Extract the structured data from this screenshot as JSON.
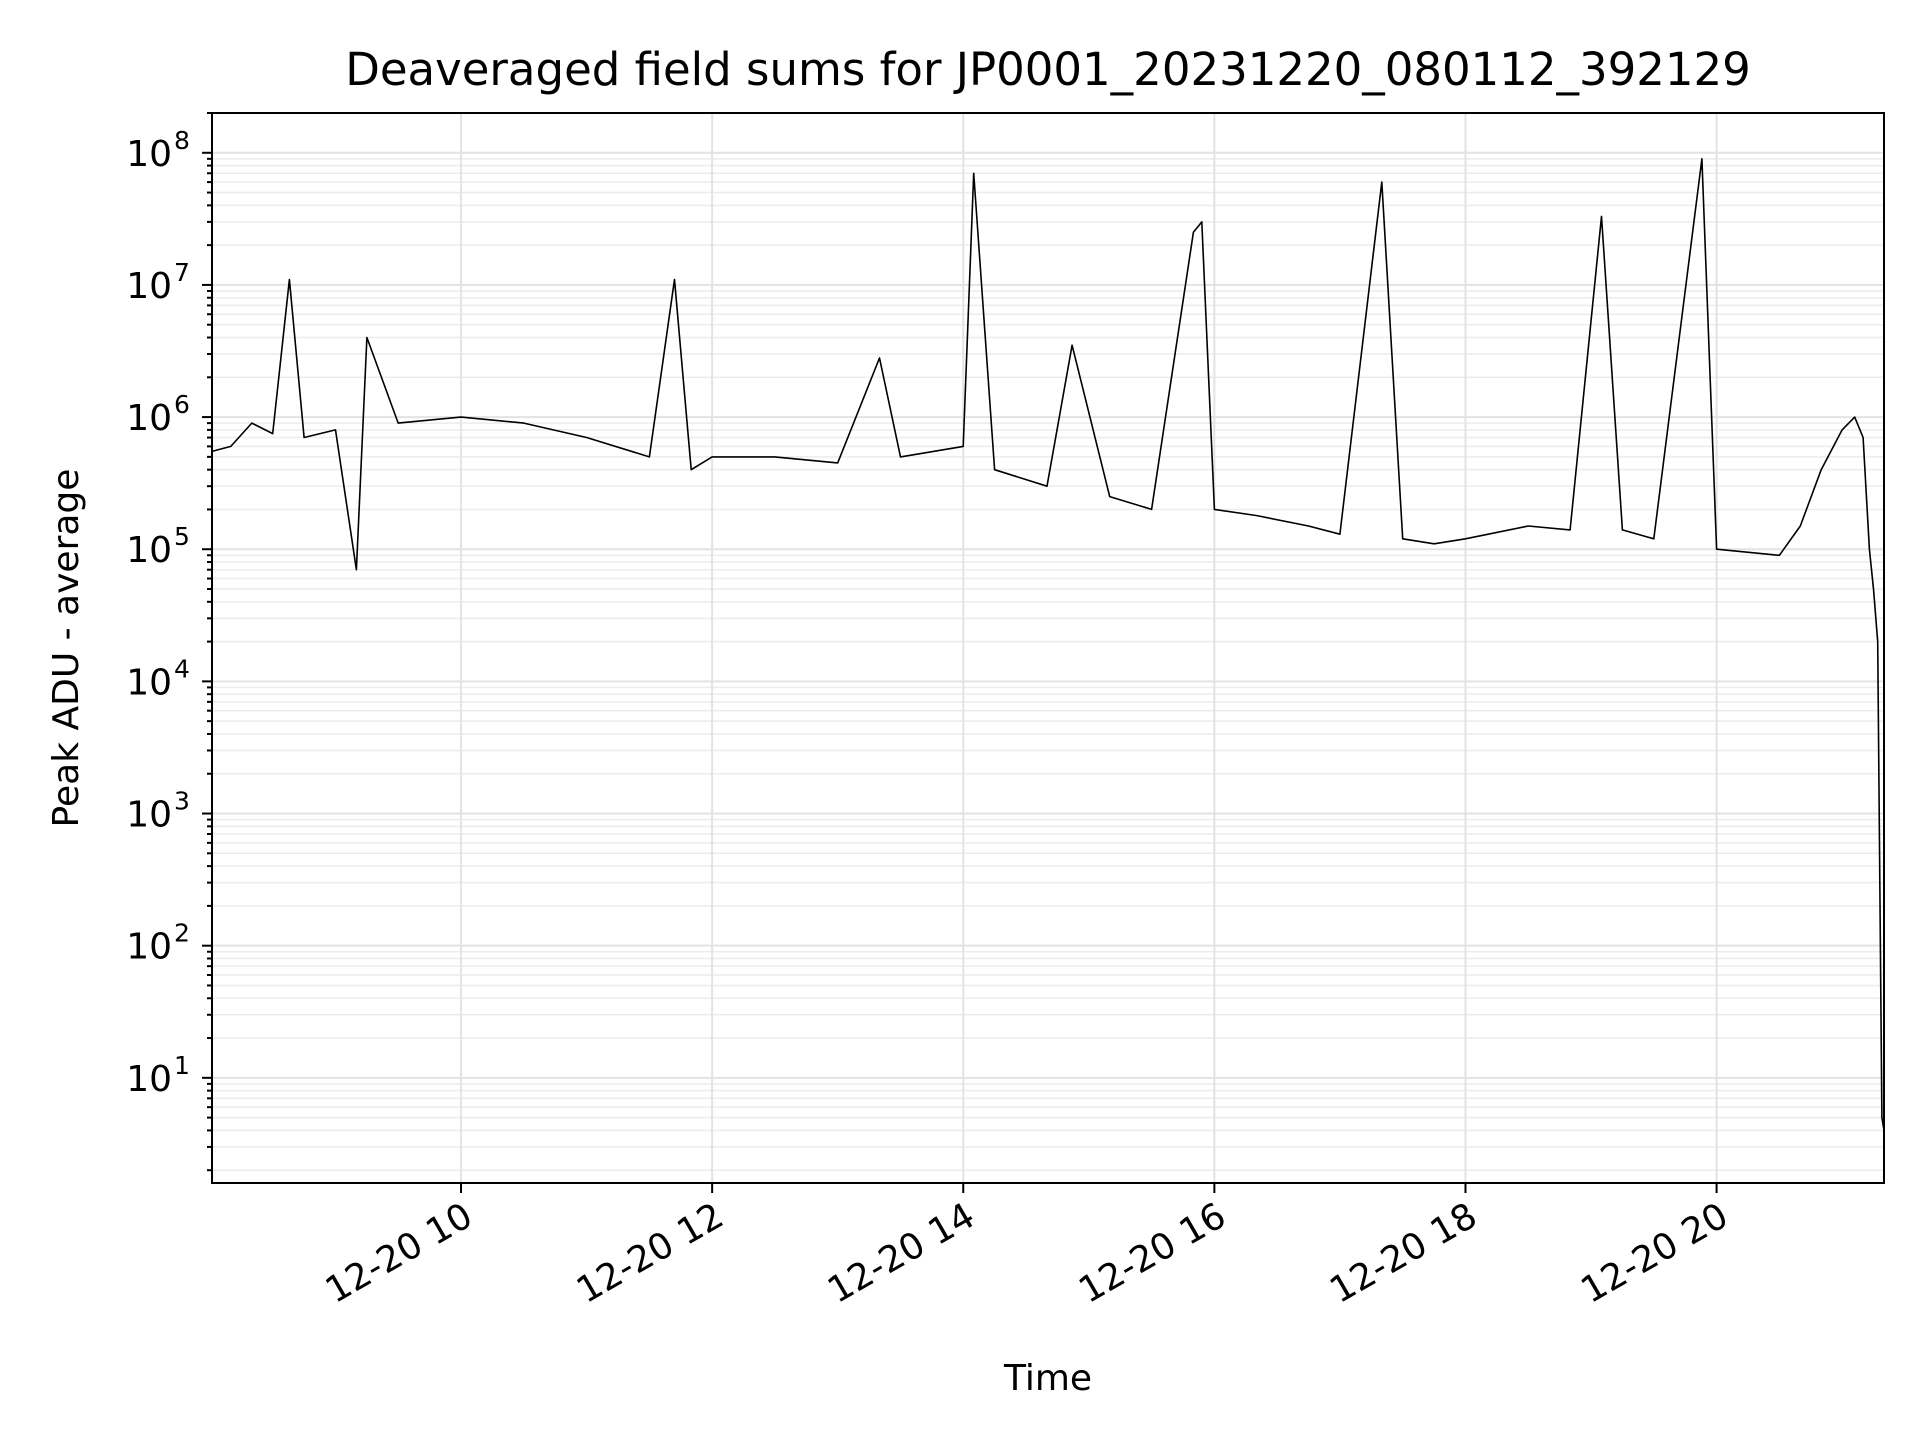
{
  "chart_data": {
    "type": "line",
    "title": "Deaveraged field sums for JP0001_20231220_080112_392129",
    "xlabel": "Time",
    "ylabel": "Peak ADU - average",
    "xscale": "time",
    "yscale": "log",
    "xlim": [
      "2023-12-20 08:01",
      "2023-12-20 21:20"
    ],
    "ylim": [
      1.6,
      200000000.0
    ],
    "grid": true,
    "grid_minor_y": true,
    "legend": "none",
    "line_color": "#000000",
    "x_ticks": [
      {
        "value": "2023-12-20 10:00",
        "label": "12-20 10"
      },
      {
        "value": "2023-12-20 12:00",
        "label": "12-20 12"
      },
      {
        "value": "2023-12-20 14:00",
        "label": "12-20 14"
      },
      {
        "value": "2023-12-20 16:00",
        "label": "12-20 16"
      },
      {
        "value": "2023-12-20 18:00",
        "label": "12-20 18"
      },
      {
        "value": "2023-12-20 20:00",
        "label": "12-20 20"
      }
    ],
    "y_ticks": [
      {
        "value": 10,
        "base": "10",
        "exp": "1"
      },
      {
        "value": 100,
        "base": "10",
        "exp": "2"
      },
      {
        "value": 1000,
        "base": "10",
        "exp": "3"
      },
      {
        "value": 10000,
        "base": "10",
        "exp": "4"
      },
      {
        "value": 100000,
        "base": "10",
        "exp": "5"
      },
      {
        "value": 1000000,
        "base": "10",
        "exp": "6"
      },
      {
        "value": 10000000,
        "base": "10",
        "exp": "7"
      },
      {
        "value": 100000000,
        "base": "10",
        "exp": "8"
      }
    ],
    "series": [
      {
        "values": [
          [
            "2023-12-20 08:01",
            550000
          ],
          [
            "2023-12-20 08:10",
            600000
          ],
          [
            "2023-12-20 08:20",
            900000
          ],
          [
            "2023-12-20 08:30",
            750000
          ],
          [
            "2023-12-20 08:38",
            11000000
          ],
          [
            "2023-12-20 08:45",
            700000
          ],
          [
            "2023-12-20 09:00",
            800000
          ],
          [
            "2023-12-20 09:10",
            70000
          ],
          [
            "2023-12-20 09:15",
            4000000
          ],
          [
            "2023-12-20 09:30",
            900000
          ],
          [
            "2023-12-20 10:00",
            1000000
          ],
          [
            "2023-12-20 10:30",
            900000
          ],
          [
            "2023-12-20 11:00",
            700000
          ],
          [
            "2023-12-20 11:30",
            500000
          ],
          [
            "2023-12-20 11:42",
            11000000
          ],
          [
            "2023-12-20 11:50",
            400000
          ],
          [
            "2023-12-20 12:00",
            500000
          ],
          [
            "2023-12-20 12:30",
            500000
          ],
          [
            "2023-12-20 13:00",
            450000
          ],
          [
            "2023-12-20 13:20",
            2800000
          ],
          [
            "2023-12-20 13:30",
            500000
          ],
          [
            "2023-12-20 14:00",
            600000
          ],
          [
            "2023-12-20 14:05",
            70000000
          ],
          [
            "2023-12-20 14:15",
            400000
          ],
          [
            "2023-12-20 14:40",
            300000
          ],
          [
            "2023-12-20 14:52",
            3500000
          ],
          [
            "2023-12-20 15:10",
            250000
          ],
          [
            "2023-12-20 15:30",
            200000
          ],
          [
            "2023-12-20 15:50",
            25000000
          ],
          [
            "2023-12-20 15:54",
            30000000
          ],
          [
            "2023-12-20 16:00",
            200000
          ],
          [
            "2023-12-20 16:20",
            180000
          ],
          [
            "2023-12-20 16:45",
            150000
          ],
          [
            "2023-12-20 17:00",
            130000
          ],
          [
            "2023-12-20 17:20",
            60000000
          ],
          [
            "2023-12-20 17:30",
            120000
          ],
          [
            "2023-12-20 17:45",
            110000
          ],
          [
            "2023-12-20 18:00",
            120000
          ],
          [
            "2023-12-20 18:30",
            150000
          ],
          [
            "2023-12-20 18:50",
            140000
          ],
          [
            "2023-12-20 19:05",
            33000000
          ],
          [
            "2023-12-20 19:15",
            140000
          ],
          [
            "2023-12-20 19:30",
            120000
          ],
          [
            "2023-12-20 19:53",
            90000000
          ],
          [
            "2023-12-20 20:00",
            100000
          ],
          [
            "2023-12-20 20:30",
            90000
          ],
          [
            "2023-12-20 20:40",
            150000
          ],
          [
            "2023-12-20 20:50",
            400000
          ],
          [
            "2023-12-20 21:00",
            800000
          ],
          [
            "2023-12-20 21:06",
            1000000
          ],
          [
            "2023-12-20 21:10",
            700000
          ],
          [
            "2023-12-20 21:13",
            100000
          ],
          [
            "2023-12-20 21:15",
            50000
          ],
          [
            "2023-12-20 21:17",
            20000
          ],
          [
            "2023-12-20 21:19",
            5
          ],
          [
            "2023-12-20 21:20",
            4
          ]
        ]
      }
    ]
  }
}
